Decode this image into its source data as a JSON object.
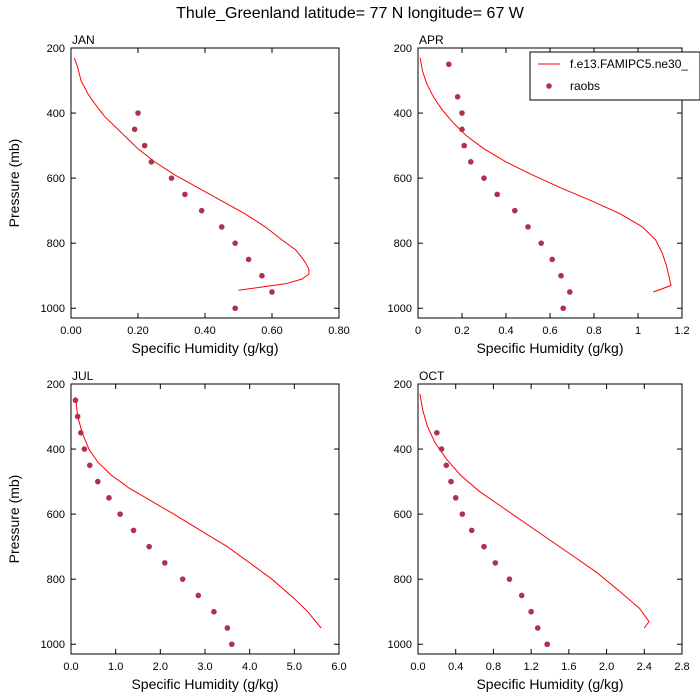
{
  "figure": {
    "title": "Thule_Greenland  latitude= 77 N longitude= 67 W"
  },
  "legend": {
    "position": "top-right (overlapping APR panel)",
    "entries": [
      {
        "label": "f.e13.FAMIPC5.ne30_",
        "type": "line",
        "color": "#ff0000"
      },
      {
        "label": "raobs",
        "type": "marker",
        "color": "#b03050"
      }
    ]
  },
  "colors": {
    "model_line": "#ff0000",
    "raobs_marker": "#b03050"
  },
  "chart_data": [
    {
      "type": "scatter",
      "title": "JAN",
      "xlabel": "Specific Humidity (g/kg)",
      "ylabel": "Pressure (mb)",
      "xlim": [
        0,
        0.8
      ],
      "ylim": [
        1030,
        200
      ],
      "xticks": [
        0,
        0.2,
        0.4,
        0.6,
        0.8
      ],
      "xtick_labels": [
        "0.00",
        "0.20",
        "0.40",
        "0.60",
        "0.80"
      ],
      "yticks": [
        200,
        400,
        600,
        800,
        1000
      ],
      "ytick_labels": [
        "200",
        "400",
        "600",
        "800",
        "1000"
      ],
      "series": [
        {
          "label_ref": 0,
          "kind": "line",
          "x": [
            0.01,
            0.02,
            0.03,
            0.05,
            0.07,
            0.1,
            0.13,
            0.16,
            0.2,
            0.25,
            0.31,
            0.38,
            0.45,
            0.52,
            0.58,
            0.63,
            0.67,
            0.69,
            0.7,
            0.71,
            0.71,
            0.69,
            0.64,
            0.5
          ],
          "y": [
            230,
            260,
            300,
            340,
            370,
            410,
            440,
            470,
            510,
            550,
            590,
            630,
            670,
            710,
            750,
            790,
            820,
            845,
            860,
            880,
            895,
            910,
            925,
            945
          ]
        },
        {
          "label_ref": 1,
          "kind": "markers",
          "x": [
            0.2,
            0.19,
            0.22,
            0.24,
            0.3,
            0.34,
            0.39,
            0.45,
            0.49,
            0.53,
            0.57,
            0.6,
            0.49
          ],
          "y": [
            400,
            450,
            500,
            550,
            600,
            650,
            700,
            750,
            800,
            850,
            900,
            950,
            1000
          ]
        }
      ]
    },
    {
      "type": "scatter",
      "title": "APR",
      "xlabel": "Specific Humidity (g/kg)",
      "ylabel": "",
      "xlim": [
        0,
        1.2
      ],
      "ylim": [
        1030,
        200
      ],
      "xticks": [
        0,
        0.2,
        0.4,
        0.6,
        0.8,
        1.0,
        1.2
      ],
      "xtick_labels": [
        "0",
        "0.2",
        "0.4",
        "0.6",
        "0.8",
        "1",
        "1.2"
      ],
      "yticks": [
        200,
        400,
        600,
        800,
        1000
      ],
      "ytick_labels": [
        "200",
        "400",
        "600",
        "800",
        "1000"
      ],
      "series": [
        {
          "label_ref": 0,
          "kind": "line",
          "x": [
            0.01,
            0.02,
            0.04,
            0.07,
            0.11,
            0.16,
            0.22,
            0.3,
            0.4,
            0.52,
            0.65,
            0.79,
            0.92,
            1.02,
            1.08,
            1.11,
            1.13,
            1.14,
            1.15,
            1.07
          ],
          "y": [
            230,
            270,
            310,
            350,
            390,
            430,
            470,
            510,
            550,
            590,
            630,
            670,
            710,
            750,
            790,
            830,
            870,
            900,
            930,
            950
          ]
        },
        {
          "label_ref": 1,
          "kind": "markers",
          "x": [
            0.14,
            0.18,
            0.2,
            0.2,
            0.21,
            0.24,
            0.3,
            0.36,
            0.44,
            0.5,
            0.56,
            0.61,
            0.65,
            0.69,
            0.66
          ],
          "y": [
            250,
            350,
            400,
            450,
            500,
            550,
            600,
            650,
            700,
            750,
            800,
            850,
            900,
            950,
            1000
          ]
        }
      ]
    },
    {
      "type": "scatter",
      "title": "JUL",
      "xlabel": "Specific Humidity (g/kg)",
      "ylabel": "Pressure (mb)",
      "xlim": [
        0,
        6
      ],
      "ylim": [
        1030,
        200
      ],
      "xticks": [
        0,
        1,
        2,
        3,
        4,
        5,
        6
      ],
      "xtick_labels": [
        "0.0",
        "1.0",
        "2.0",
        "3.0",
        "4.0",
        "5.0",
        "6.0"
      ],
      "yticks": [
        200,
        400,
        600,
        800,
        1000
      ],
      "ytick_labels": [
        "200",
        "400",
        "600",
        "800",
        "1000"
      ],
      "series": [
        {
          "label_ref": 0,
          "kind": "line",
          "x": [
            0.1,
            0.15,
            0.25,
            0.4,
            0.6,
            0.9,
            1.3,
            1.8,
            2.3,
            2.9,
            3.5,
            4.0,
            4.5,
            5.0,
            5.3,
            5.6
          ],
          "y": [
            240,
            300,
            350,
            400,
            440,
            480,
            520,
            560,
            600,
            650,
            700,
            750,
            800,
            860,
            900,
            950
          ]
        },
        {
          "label_ref": 1,
          "kind": "markers",
          "x": [
            0.1,
            0.15,
            0.22,
            0.3,
            0.42,
            0.6,
            0.85,
            1.1,
            1.4,
            1.75,
            2.1,
            2.5,
            2.85,
            3.2,
            3.5,
            3.6
          ],
          "y": [
            250,
            300,
            350,
            400,
            450,
            500,
            550,
            600,
            650,
            700,
            750,
            800,
            850,
            900,
            950,
            1000
          ]
        }
      ]
    },
    {
      "type": "scatter",
      "title": "OCT",
      "xlabel": "Specific Humidity (g/kg)",
      "ylabel": "",
      "xlim": [
        0,
        2.8
      ],
      "ylim": [
        1030,
        200
      ],
      "xticks": [
        0,
        0.4,
        0.8,
        1.2,
        1.6,
        2.0,
        2.4,
        2.8
      ],
      "xtick_labels": [
        "0.0",
        "0.4",
        "0.8",
        "1.2",
        "1.6",
        "2.0",
        "2.4",
        "2.8"
      ],
      "yticks": [
        200,
        400,
        600,
        800,
        1000
      ],
      "ytick_labels": [
        "200",
        "400",
        "600",
        "800",
        "1000"
      ],
      "series": [
        {
          "label_ref": 0,
          "kind": "line",
          "x": [
            0.02,
            0.05,
            0.1,
            0.18,
            0.3,
            0.45,
            0.65,
            0.9,
            1.15,
            1.4,
            1.65,
            1.9,
            2.15,
            2.35,
            2.45,
            2.4
          ],
          "y": [
            230,
            280,
            330,
            380,
            430,
            480,
            530,
            580,
            630,
            680,
            730,
            780,
            840,
            890,
            930,
            950
          ]
        },
        {
          "label_ref": 1,
          "kind": "markers",
          "x": [
            0.2,
            0.25,
            0.3,
            0.35,
            0.4,
            0.47,
            0.57,
            0.7,
            0.82,
            0.97,
            1.1,
            1.2,
            1.27,
            1.37,
            1.37
          ],
          "y": [
            350,
            400,
            450,
            500,
            550,
            600,
            650,
            700,
            750,
            800,
            850,
            900,
            950,
            1000,
            1000
          ]
        }
      ]
    }
  ]
}
